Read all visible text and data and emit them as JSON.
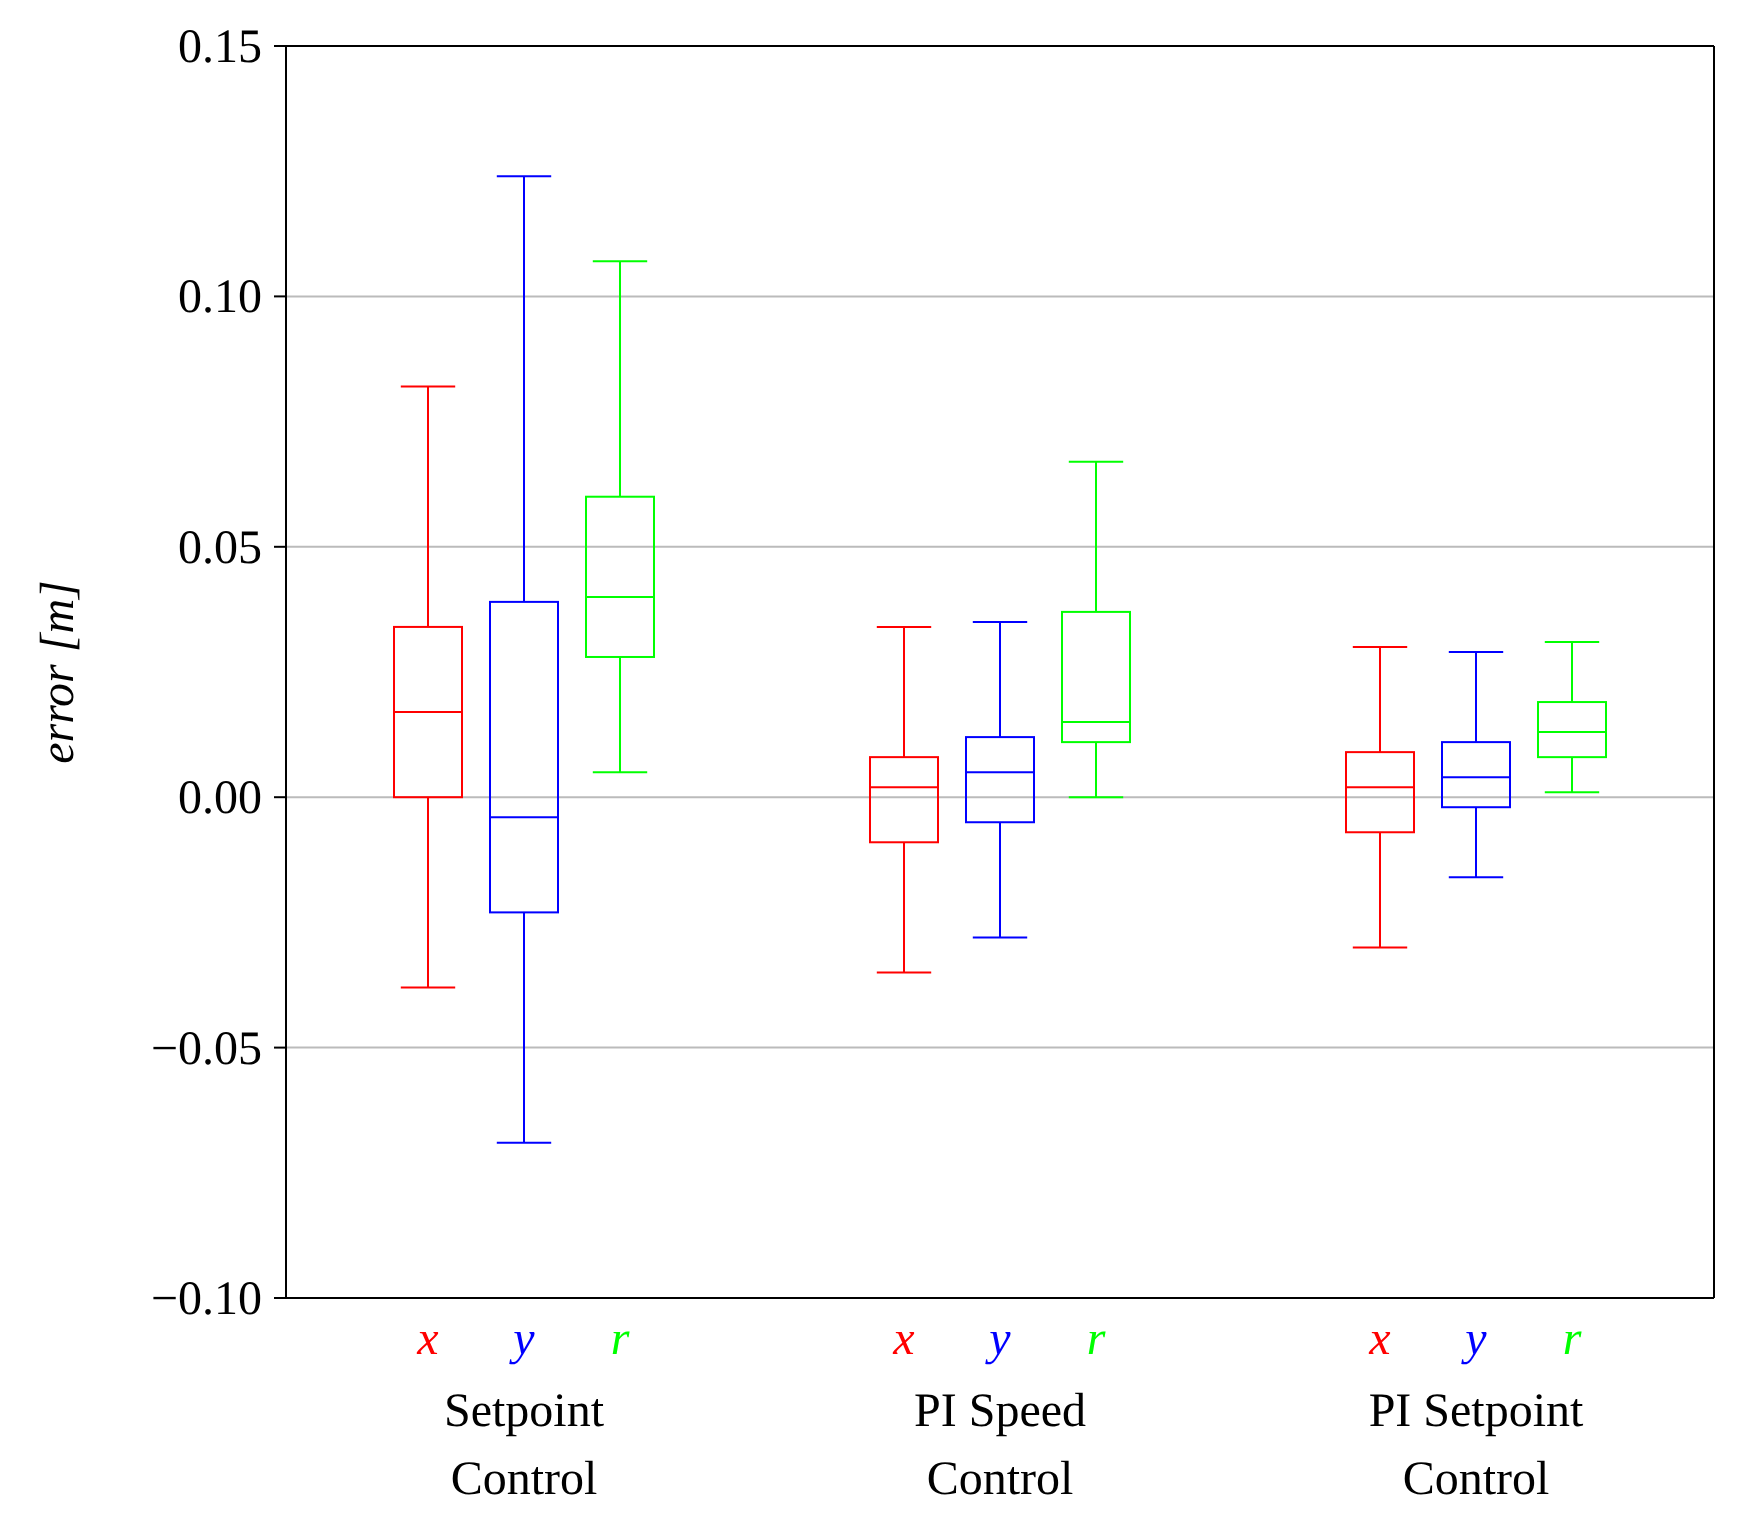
{
  "chart_data": {
    "type": "box",
    "ylabel": "error [m]",
    "categories": [
      "Setpoint Control",
      "PI Speed Control",
      "PI Setpoint Control"
    ],
    "series": [
      {
        "name": "x",
        "color": "#ff0000",
        "boxes": [
          {
            "low": -0.038,
            "q1": 0.0,
            "median": 0.017,
            "q3": 0.034,
            "high": 0.082
          },
          {
            "low": -0.035,
            "q1": -0.009,
            "median": 0.002,
            "q3": 0.008,
            "high": 0.034
          },
          {
            "low": -0.03,
            "q1": -0.007,
            "median": 0.002,
            "q3": 0.009,
            "high": 0.03
          }
        ]
      },
      {
        "name": "y",
        "color": "#0000ff",
        "boxes": [
          {
            "low": -0.069,
            "q1": -0.023,
            "median": -0.004,
            "q3": 0.039,
            "high": 0.124
          },
          {
            "low": -0.028,
            "q1": -0.005,
            "median": 0.005,
            "q3": 0.012,
            "high": 0.035
          },
          {
            "low": -0.016,
            "q1": -0.002,
            "median": 0.004,
            "q3": 0.011,
            "high": 0.029
          }
        ]
      },
      {
        "name": "r",
        "color": "#00ff00",
        "boxes": [
          {
            "low": 0.005,
            "q1": 0.028,
            "median": 0.04,
            "q3": 0.06,
            "high": 0.107
          },
          {
            "low": 0.0,
            "q1": 0.011,
            "median": 0.015,
            "q3": 0.037,
            "high": 0.067
          },
          {
            "low": 0.001,
            "q1": 0.008,
            "median": 0.013,
            "q3": 0.019,
            "high": 0.031
          }
        ]
      }
    ],
    "ylim": [
      -0.1,
      0.15
    ],
    "yticks": [
      {
        "value": -0.1,
        "label": "−0.10"
      },
      {
        "value": -0.05,
        "label": "−0.05"
      },
      {
        "value": 0,
        "label": "0.00"
      },
      {
        "value": 0.05,
        "label": "0.05"
      },
      {
        "value": 0.1,
        "label": "0.10"
      },
      {
        "value": 0.15,
        "label": "0.15"
      }
    ],
    "grid": "y"
  }
}
